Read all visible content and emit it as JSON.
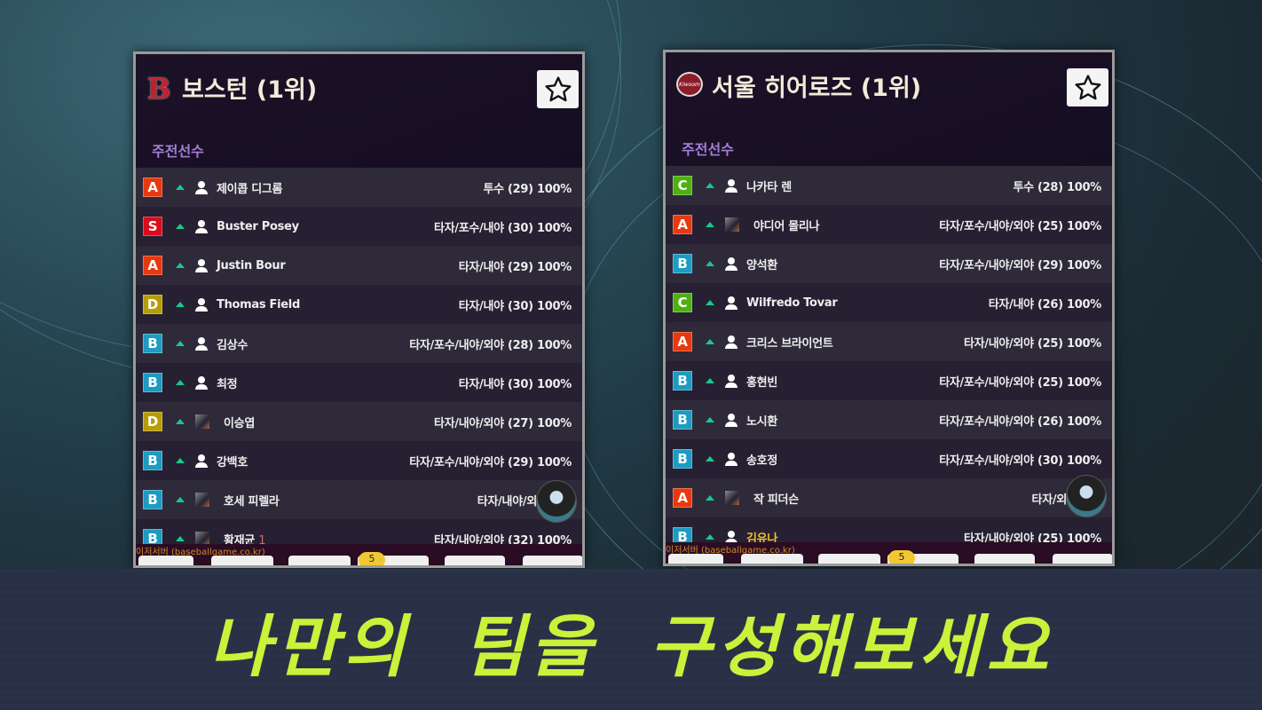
{
  "panels": [
    {
      "title": "보스턴 (1위)",
      "logo": "B",
      "section": "주전선수",
      "source": "이저서버 (baseballgame.co.kr)",
      "badge": "5",
      "rows": [
        {
          "grade": "A",
          "icon": "person",
          "name": "제이콥 디그롬",
          "info": "투수 (29) 100%"
        },
        {
          "grade": "S",
          "icon": "person",
          "name": "Buster Posey",
          "info": "타자/포수/내야 (30) 100%"
        },
        {
          "grade": "A",
          "icon": "person",
          "name": "Justin Bour",
          "info": "타자/내야 (29) 100%"
        },
        {
          "grade": "D",
          "icon": "person",
          "name": "Thomas Field",
          "info": "타자/내야 (30) 100%"
        },
        {
          "grade": "B",
          "icon": "person",
          "name": "김상수",
          "info": "타자/포수/내야/외야 (28) 100%"
        },
        {
          "grade": "B",
          "icon": "person",
          "name": "최정",
          "info": "타자/내야 (30) 100%"
        },
        {
          "grade": "D",
          "icon": "photo",
          "name": "이승엽",
          "info": "타자/내야/외야 (27) 100%"
        },
        {
          "grade": "B",
          "icon": "person",
          "name": "강백호",
          "info": "타자/포수/내야/외야 (29) 100%"
        },
        {
          "grade": "B",
          "icon": "photo",
          "name": "호세 피렐라",
          "info": "타자/내야/외야 (28"
        },
        {
          "grade": "B",
          "icon": "photo",
          "name": "황재균",
          "num": "1",
          "info": "타자/내야/외야 (32) 100%"
        }
      ]
    },
    {
      "title": "서울 히어로즈 (1위)",
      "logo": "Kiwoom",
      "section": "주전선수",
      "source": "이저서버 (baseballgame.co.kr)",
      "badge": "5",
      "rows": [
        {
          "grade": "C",
          "icon": "person",
          "name": "나카타 렌",
          "info": "투수 (28) 100%"
        },
        {
          "grade": "A",
          "icon": "photo",
          "name": "야디어 몰리나",
          "info": "타자/포수/내야/외야 (25) 100%"
        },
        {
          "grade": "B",
          "icon": "person",
          "name": "양석환",
          "info": "타자/포수/내야/외야 (29) 100%"
        },
        {
          "grade": "C",
          "icon": "person",
          "name": "Wilfredo Tovar",
          "info": "타자/내야 (26) 100%"
        },
        {
          "grade": "A",
          "icon": "person",
          "name": "크리스 브라이언트",
          "info": "타자/내야/외야 (25) 100%"
        },
        {
          "grade": "B",
          "icon": "person",
          "name": "홍현빈",
          "info": "타자/포수/내야/외야 (25) 100%"
        },
        {
          "grade": "B",
          "icon": "person",
          "name": "노시환",
          "info": "타자/포수/내야/외야 (26) 100%"
        },
        {
          "grade": "B",
          "icon": "person",
          "name": "송호정",
          "info": "타자/포수/내야/외야 (30) 100%"
        },
        {
          "grade": "A",
          "icon": "photo",
          "name": "작 피더슨",
          "info": "타자/외야 (25"
        },
        {
          "grade": "B",
          "icon": "person",
          "name": "김유나",
          "gold": true,
          "info": "타자/내야/외야 (25) 100%"
        }
      ]
    }
  ],
  "grade_colors": {
    "A": "#e8380f",
    "S": "#dc0a1c",
    "B": "#1d9bc2",
    "C": "#4fb012",
    "D": "#b69d06"
  },
  "slogan": "나만의 팀을 구성해보세요"
}
